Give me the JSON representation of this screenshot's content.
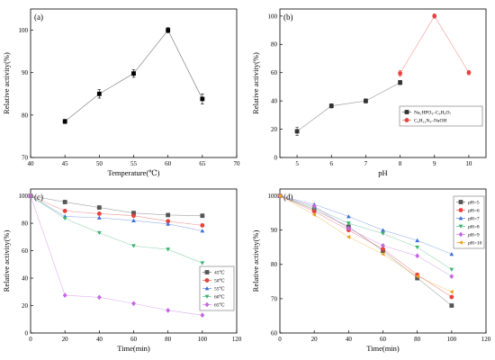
{
  "chart_data": [
    {
      "panel": "(a)",
      "type": "line",
      "xlabel": "Temperature(℃)",
      "ylabel": "Relative activity(%)",
      "xlim": [
        40,
        70
      ],
      "ylim": [
        70,
        105
      ],
      "xticks": [
        40,
        45,
        50,
        55,
        60,
        65,
        70
      ],
      "yticks": [
        70,
        80,
        90,
        100
      ],
      "series": [
        {
          "x": [
            45,
            50,
            55,
            60,
            65
          ],
          "values": [
            78.5,
            85.0,
            89.8,
            100.0,
            83.8
          ],
          "errors": [
            0.5,
            1.0,
            0.9,
            0.6,
            1.2
          ],
          "color": "#000000",
          "marker": "square"
        }
      ]
    },
    {
      "panel": "(b)",
      "type": "line",
      "xlabel": "pH",
      "ylabel": "Relative activity(%)",
      "xlim": [
        4.5,
        10.5
      ],
      "ylim": [
        0,
        105
      ],
      "xticks": [
        5,
        6,
        7,
        8,
        9,
        10
      ],
      "yticks": [
        0,
        20,
        40,
        60,
        80,
        100
      ],
      "legend_position": "middle-right",
      "series": [
        {
          "name": "Na₂HPO₄–C₆H₈O₇",
          "x": [
            5,
            6,
            7,
            8
          ],
          "values": [
            18.5,
            36.5,
            40.0,
            53.0
          ],
          "errors": [
            3.0,
            1.5,
            1.5,
            1.5
          ],
          "color": "#333333",
          "marker": "square"
        },
        {
          "name": "C₆H₁₂N₄–NaOH",
          "x": [
            8,
            9,
            10
          ],
          "values": [
            59.5,
            100.0,
            60.0
          ],
          "errors": [
            2.0,
            1.5,
            1.5
          ],
          "color": "#e8413c",
          "marker": "circle"
        }
      ]
    },
    {
      "panel": "(c)",
      "type": "line",
      "xlabel": "Time(min)",
      "ylabel": "Relative activity(%)",
      "xlim": [
        0,
        120
      ],
      "ylim": [
        0,
        105
      ],
      "xticks": [
        0,
        20,
        40,
        60,
        80,
        100,
        120
      ],
      "yticks": [
        0,
        20,
        40,
        60,
        80,
        100
      ],
      "legend_position": "bottom-right",
      "x": [
        0,
        20,
        40,
        60,
        80,
        100
      ],
      "series": [
        {
          "name": "45℃",
          "values": [
            100,
            95.5,
            91.5,
            87.5,
            86.0,
            85.5
          ],
          "color": "#555555",
          "marker": "square"
        },
        {
          "name": "50℃",
          "values": [
            100,
            89.0,
            87.0,
            85.5,
            81.5,
            78.5
          ],
          "color": "#e8413c",
          "marker": "circle"
        },
        {
          "name": "55℃",
          "values": [
            100,
            85.0,
            84.0,
            82.0,
            79.5,
            74.5
          ],
          "color": "#3f6fd8",
          "marker": "triangle-up"
        },
        {
          "name": "60℃",
          "values": [
            100,
            83.5,
            73.0,
            63.5,
            61.0,
            51.0
          ],
          "color": "#3cb371",
          "marker": "triangle-down"
        },
        {
          "name": "65℃",
          "values": [
            100,
            27.5,
            26.0,
            21.5,
            16.5,
            13.0
          ],
          "color": "#c566e0",
          "marker": "diamond"
        }
      ]
    },
    {
      "panel": "(d)",
      "type": "line",
      "xlabel": "Time(min)",
      "ylabel": "Relative activity(%)",
      "xlim": [
        0,
        120
      ],
      "ylim": [
        60,
        102
      ],
      "xticks": [
        0,
        20,
        40,
        60,
        80,
        100,
        120
      ],
      "yticks": [
        60,
        70,
        80,
        90,
        100
      ],
      "legend_position": "top-right",
      "x": [
        0,
        20,
        40,
        60,
        80,
        100
      ],
      "series": [
        {
          "name": "pH=5",
          "values": [
            100,
            96.0,
            91.0,
            84.0,
            76.0,
            68.0
          ],
          "color": "#555555",
          "marker": "square"
        },
        {
          "name": "pH=6",
          "values": [
            100,
            95.5,
            90.0,
            84.5,
            77.0,
            70.5
          ],
          "color": "#e8413c",
          "marker": "circle"
        },
        {
          "name": "pH=7",
          "values": [
            100,
            97.5,
            94.0,
            90.0,
            87.0,
            83.0
          ],
          "color": "#3f6fd8",
          "marker": "triangle-up"
        },
        {
          "name": "pH=8",
          "values": [
            100,
            96.5,
            92.0,
            89.0,
            85.0,
            78.5
          ],
          "color": "#3cb371",
          "marker": "triangle-down"
        },
        {
          "name": "pH=9",
          "values": [
            100,
            97.0,
            90.5,
            85.5,
            82.5,
            76.5
          ],
          "color": "#c566e0",
          "marker": "diamond"
        },
        {
          "name": "pH=10",
          "values": [
            100,
            94.5,
            88.0,
            83.0,
            76.5,
            72.0
          ],
          "color": "#f0a020",
          "marker": "triangle-left"
        }
      ]
    }
  ]
}
